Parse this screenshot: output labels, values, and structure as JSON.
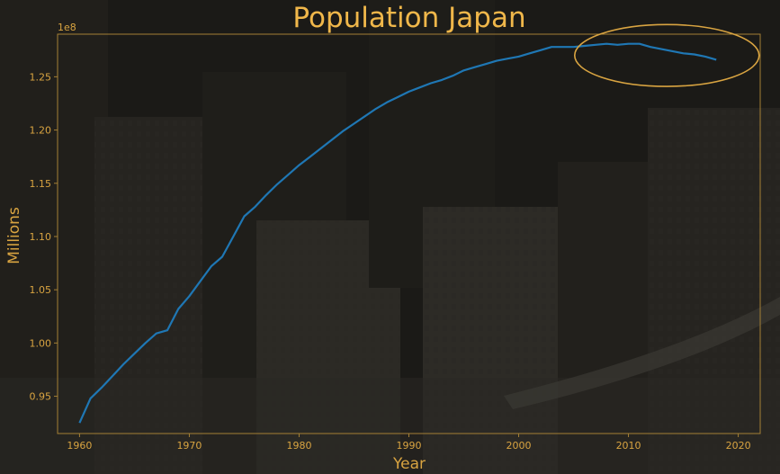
{
  "chart_data": {
    "type": "line",
    "title": "Population Japan",
    "xlabel": "Year",
    "ylabel": "Millions",
    "y_offset_label": "1e8",
    "xlim": [
      1958,
      2022
    ],
    "ylim": [
      0.915,
      1.29
    ],
    "x_ticks": [
      1960,
      1970,
      1980,
      1990,
      2000,
      2010,
      2020
    ],
    "y_ticks": [
      0.95,
      1.0,
      1.05,
      1.1,
      1.15,
      1.2,
      1.25
    ],
    "y_tick_labels": [
      "0.95",
      "1.00",
      "1.05",
      "1.10",
      "1.15",
      "1.20",
      "1.25"
    ],
    "grid": false,
    "series": [
      {
        "x": [
          1960,
          1961,
          1962,
          1963,
          1964,
          1965,
          1966,
          1967,
          1968,
          1969,
          1970,
          1971,
          1972,
          1973,
          1974,
          1975,
          1976,
          1977,
          1978,
          1979,
          1980,
          1981,
          1982,
          1983,
          1984,
          1985,
          1986,
          1987,
          1988,
          1989,
          1990,
          1991,
          1992,
          1993,
          1994,
          1995,
          1996,
          1997,
          1998,
          1999,
          2000,
          2001,
          2002,
          2003,
          2004,
          2005,
          2006,
          2007,
          2008,
          2009,
          2010,
          2011,
          2012,
          2013,
          2014,
          2015,
          2016,
          2017,
          2018
        ],
        "values": [
          0.925,
          0.948,
          0.958,
          0.969,
          0.98,
          0.99,
          1.0,
          1.009,
          1.012,
          1.032,
          1.044,
          1.058,
          1.072,
          1.081,
          1.1,
          1.119,
          1.128,
          1.139,
          1.149,
          1.158,
          1.167,
          1.175,
          1.183,
          1.191,
          1.199,
          1.206,
          1.213,
          1.22,
          1.226,
          1.231,
          1.236,
          1.24,
          1.244,
          1.247,
          1.251,
          1.256,
          1.259,
          1.262,
          1.265,
          1.267,
          1.269,
          1.272,
          1.275,
          1.278,
          1.278,
          1.278,
          1.279,
          1.28,
          1.281,
          1.28,
          1.281,
          1.281,
          1.278,
          1.276,
          1.274,
          1.272,
          1.271,
          1.269,
          1.266
        ],
        "color": "#1f77b4"
      }
    ],
    "annotation": {
      "shape": "ellipse",
      "center_x": 2013.5,
      "center_y": 1.27,
      "width_years": 16.8,
      "height_units": 0.058,
      "color": "#d9a441"
    }
  }
}
